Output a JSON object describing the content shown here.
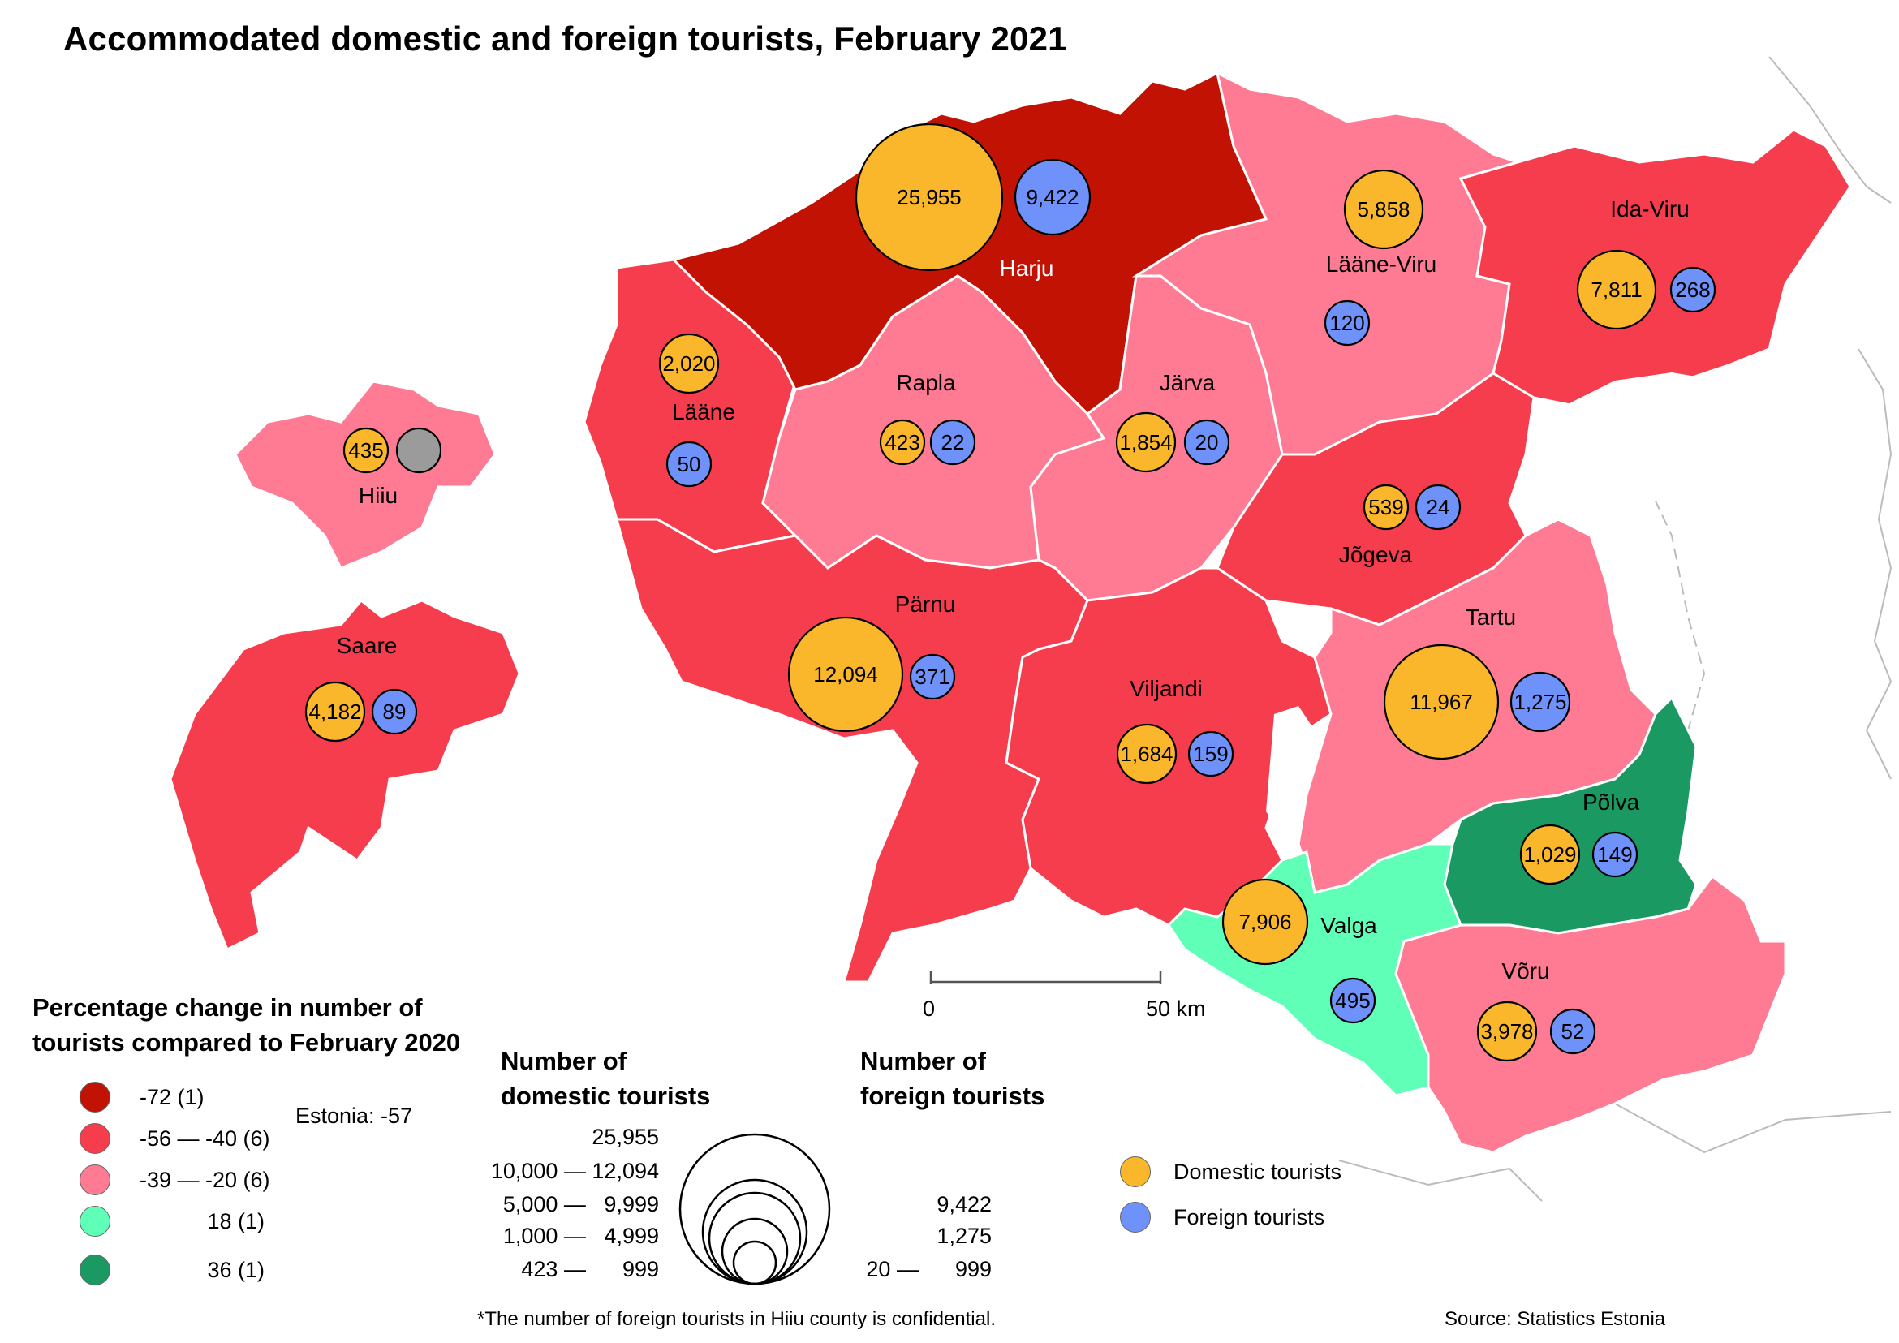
{
  "title": "Accommodated domestic and foreign tourists, February 2021",
  "colors": {
    "c72": "#c11204",
    "c56_40": "#f53d4d",
    "c39_20": "#fe7b93",
    "c18": "#5fffb7",
    "c36": "#1a9962",
    "domestic": "#fbb72c",
    "foreign": "#6e91fa",
    "confidential": "#9b9b9b"
  },
  "counties": [
    {
      "name": "Harju",
      "change_class": "-72",
      "domestic": "25,955",
      "foreign": "9,422"
    },
    {
      "name": "Lääne-Viru",
      "change_class": "-39 — -20",
      "domestic": "5,858",
      "foreign": "120"
    },
    {
      "name": "Ida-Viru",
      "change_class": "-56 — -40",
      "domestic": "7,811",
      "foreign": "268"
    },
    {
      "name": "Lääne",
      "change_class": "-56 — -40",
      "domestic": "2,020",
      "foreign": "50"
    },
    {
      "name": "Rapla",
      "change_class": "-39 — -20",
      "domestic": "423",
      "foreign": "22"
    },
    {
      "name": "Järva",
      "change_class": "-39 — -20",
      "domestic": "1,854",
      "foreign": "20"
    },
    {
      "name": "Hiiu",
      "change_class": "-39 — -20",
      "domestic": "435",
      "foreign": ""
    },
    {
      "name": "Jõgeva",
      "change_class": "-56 — -40",
      "domestic": "539",
      "foreign": "24"
    },
    {
      "name": "Pärnu",
      "change_class": "-56 — -40",
      "domestic": "12,094",
      "foreign": "371"
    },
    {
      "name": "Saare",
      "change_class": "-56 — -40",
      "domestic": "4,182",
      "foreign": "89"
    },
    {
      "name": "Tartu",
      "change_class": "-39 — -20",
      "domestic": "11,967",
      "foreign": "1,275"
    },
    {
      "name": "Viljandi",
      "change_class": "-56 — -40",
      "domestic": "1,684",
      "foreign": "159"
    },
    {
      "name": "Põlva",
      "change_class": "36",
      "domestic": "1,029",
      "foreign": "149"
    },
    {
      "name": "Valga",
      "change_class": "18",
      "domestic": "7,906",
      "foreign": "495"
    },
    {
      "name": "Võru",
      "change_class": "-39 — -20",
      "domestic": "3,978",
      "foreign": "52"
    }
  ],
  "legend_change": {
    "title_line1": "Percentage change in number of",
    "title_line2": "tourists compared to February 2020",
    "items": [
      "-72 (1)",
      "-56 — -40 (6)",
      "-39 — -20 (6)",
      "18 (1)",
      "36 (1)"
    ],
    "estonia": "Estonia: -57"
  },
  "legend_domestic": {
    "title_line1": "Number of",
    "title_line2": "domestic tourists",
    "values": [
      "25,955",
      "10,000 — 12,094",
      "5,000 —   9,999",
      "1,000 —   4,999",
      "423 —      999"
    ]
  },
  "legend_foreign": {
    "title_line1": "Number of",
    "title_line2": "foreign tourists",
    "values": [
      "9,422",
      "1,275",
      "20 —      999"
    ]
  },
  "legend_colors": {
    "domestic": "Domestic tourists",
    "foreign": "Foreign tourists"
  },
  "scale": {
    "start": "0",
    "end": "50 km"
  },
  "footnote": "*The number of foreign tourists in Hiiu county is confidential.",
  "source": "Source: Statistics Estonia"
}
